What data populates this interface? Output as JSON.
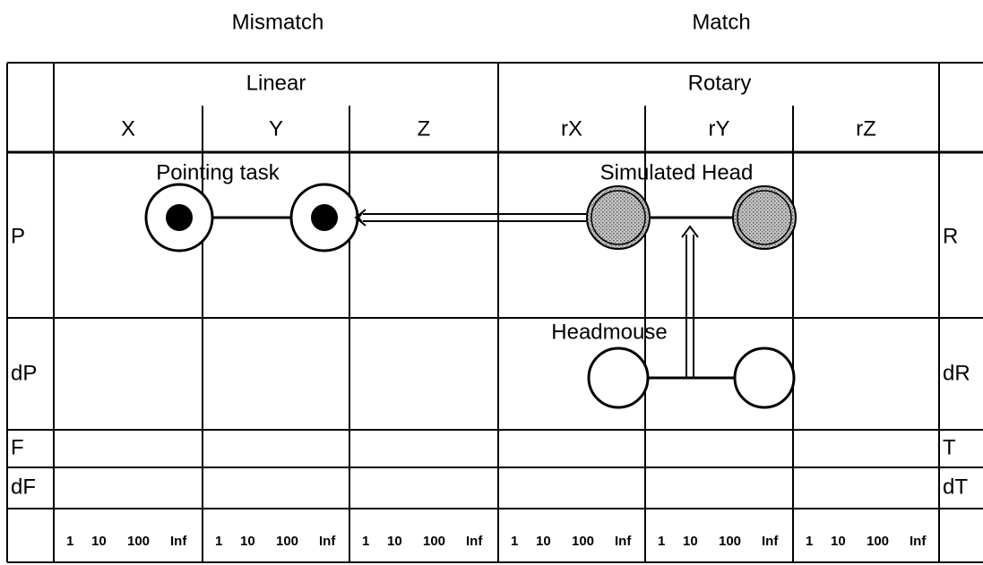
{
  "header": {
    "left": "Mismatch",
    "right": "Match"
  },
  "groups": [
    "Linear",
    "Rotary"
  ],
  "columns": [
    "X",
    "Y",
    "Z",
    "rX",
    "rY",
    "rZ"
  ],
  "rows_left": [
    "P",
    "dP",
    "F",
    "dF"
  ],
  "rows_right": [
    "R",
    "dR",
    "T",
    "dT"
  ],
  "scale": [
    "1",
    "10",
    "100",
    "Inf"
  ],
  "devices": [
    {
      "label": "Pointing task"
    },
    {
      "label": "Simulated Head"
    },
    {
      "label": "Headmouse"
    }
  ]
}
